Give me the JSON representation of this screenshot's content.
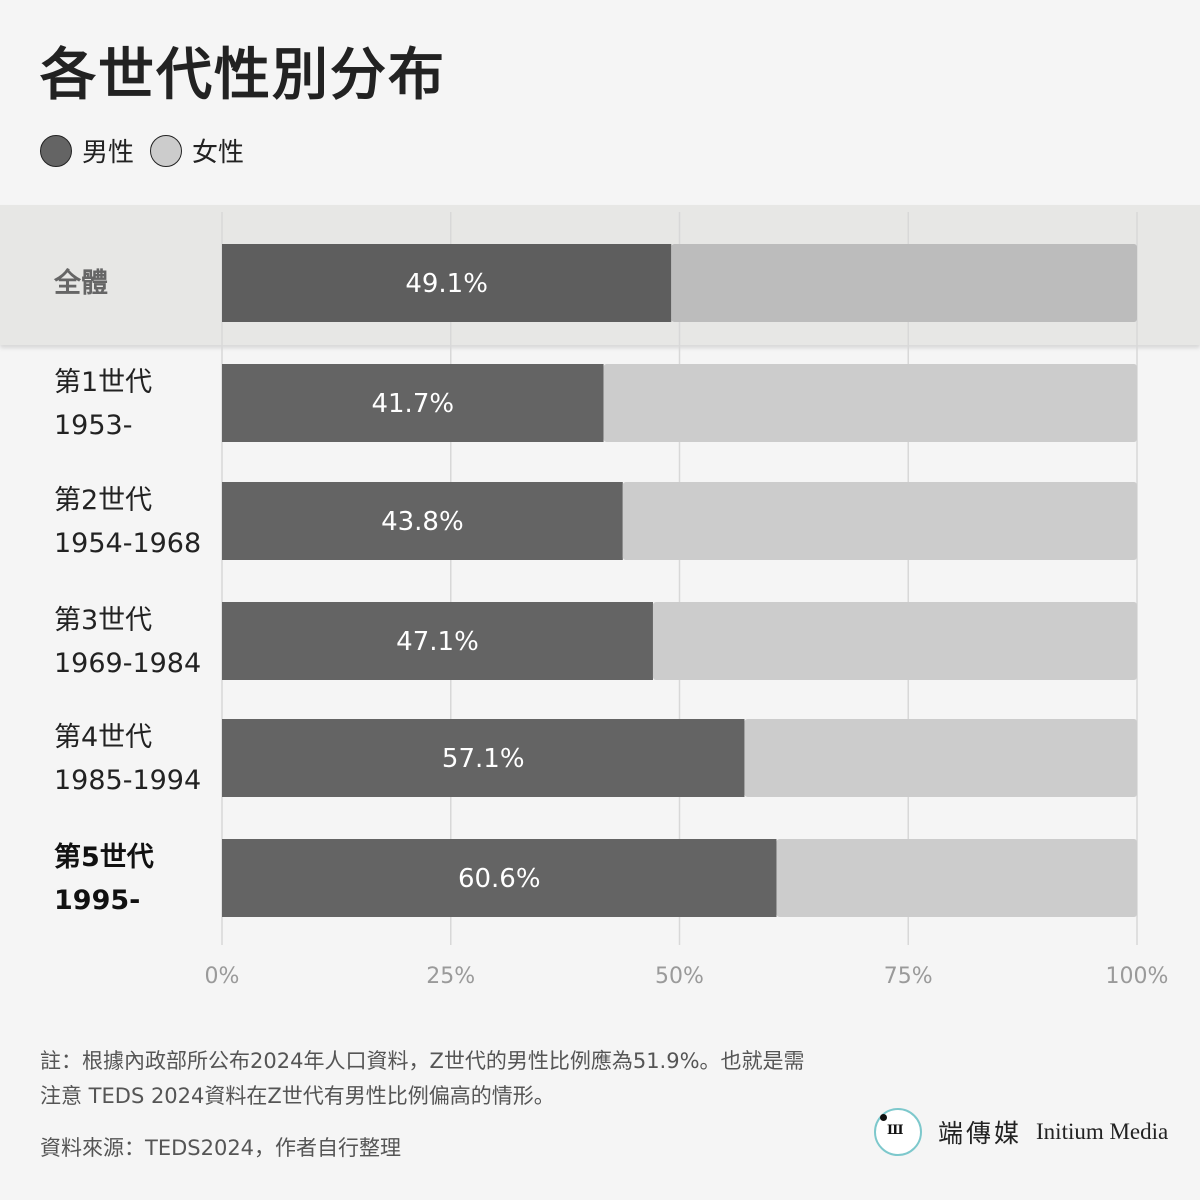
{
  "title": "各世代性別分布",
  "legend": [
    {
      "label": "男性",
      "color": "#646464"
    },
    {
      "label": "女性",
      "color": "#cccccc"
    }
  ],
  "chart_data": {
    "type": "bar",
    "orientation": "horizontal",
    "stacked": true,
    "categories": [
      {
        "name": "全體",
        "years": ""
      },
      {
        "name": "第1世代",
        "years": "1953-"
      },
      {
        "name": "第2世代",
        "years": "1954-1968"
      },
      {
        "name": "第3世代",
        "years": "1969-1984"
      },
      {
        "name": "第4世代",
        "years": "1985-1994"
      },
      {
        "name": "第5世代",
        "years": "1995-"
      }
    ],
    "series": [
      {
        "name": "男性",
        "values": [
          49.1,
          41.7,
          43.8,
          47.1,
          57.1,
          60.6
        ],
        "color": "#646464",
        "total_color": "#5e5e5e"
      },
      {
        "name": "女性",
        "values": [
          50.9,
          58.3,
          56.2,
          52.9,
          42.9,
          39.4
        ],
        "color": "#cccccc",
        "total_color": "#bcbcbc"
      }
    ],
    "data_labels": [
      "49.1%",
      "41.7%",
      "43.8%",
      "47.1%",
      "57.1%",
      "60.6%"
    ],
    "x_ticks": [
      "0%",
      "25%",
      "50%",
      "75%",
      "100%"
    ],
    "xlim": [
      0,
      100
    ],
    "grid": true,
    "legend_position": "top-left",
    "highlight_row": "全體",
    "bold_row": "第5世代"
  },
  "note": {
    "line1": "註：根據內政部所公布2024年人口資料，Z世代的男性比例應為51.9%。也就是需",
    "line2": "注意 TEDS 2024資料在Z世代有男性比例偏高的情形。"
  },
  "source": "資料來源：TEDS2024，作者自行整理",
  "brand": {
    "name_zh": "端傳媒",
    "name_en": "Initium Media"
  }
}
